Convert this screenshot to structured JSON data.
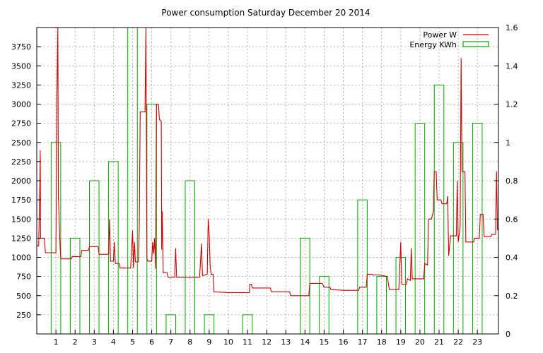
{
  "chart_data": {
    "type": "line",
    "title": "Power consumption Saturday December 20 2014",
    "xlabel": "",
    "ylabel": "",
    "y2label": "",
    "grid": true,
    "legend_position": "top-right",
    "x_ticks": [
      1,
      2,
      3,
      4,
      5,
      6,
      7,
      8,
      9,
      10,
      11,
      12,
      13,
      14,
      15,
      16,
      17,
      18,
      19,
      20,
      21,
      22,
      23
    ],
    "xlim": [
      0,
      24.1
    ],
    "y_ticks": [
      250,
      500,
      750,
      1000,
      1250,
      1500,
      1750,
      2000,
      2250,
      2500,
      2750,
      3000,
      3250,
      3500,
      3750
    ],
    "ylim": [
      0,
      4000
    ],
    "y2_ticks": [
      "0",
      "0.2",
      "0.4",
      "0.6",
      "0.8",
      "1",
      "1.2",
      "1.4",
      "1.6"
    ],
    "y2lim": [
      0,
      1.6
    ],
    "series": [
      {
        "name": "Power W",
        "axis": "left",
        "color": "#cc0000",
        "style": "line",
        "points": [
          [
            0,
            1150
          ],
          [
            0.1,
            1150
          ],
          [
            0.15,
            1800
          ],
          [
            0.18,
            2400
          ],
          [
            0.2,
            1250
          ],
          [
            0.4,
            1250
          ],
          [
            0.45,
            1060
          ],
          [
            0.9,
            1060
          ],
          [
            1.0,
            1060
          ],
          [
            1.05,
            3150
          ],
          [
            1.1,
            4000
          ],
          [
            1.13,
            1800
          ],
          [
            1.2,
            1250
          ],
          [
            1.25,
            980
          ],
          [
            1.8,
            980
          ],
          [
            1.85,
            1010
          ],
          [
            2.3,
            1010
          ],
          [
            2.35,
            1090
          ],
          [
            2.7,
            1090
          ],
          [
            2.75,
            1140
          ],
          [
            3.2,
            1140
          ],
          [
            3.25,
            1040
          ],
          [
            3.7,
            1040
          ],
          [
            3.75,
            1050
          ],
          [
            3.8,
            1500
          ],
          [
            3.85,
            950
          ],
          [
            4.0,
            950
          ],
          [
            4.05,
            1200
          ],
          [
            4.1,
            920
          ],
          [
            4.3,
            920
          ],
          [
            4.35,
            860
          ],
          [
            4.9,
            860
          ],
          [
            5.0,
            1350
          ],
          [
            5.05,
            860
          ],
          [
            5.1,
            1200
          ],
          [
            5.15,
            940
          ],
          [
            5.3,
            940
          ],
          [
            5.35,
            1400
          ],
          [
            5.4,
            2900
          ],
          [
            5.65,
            2900
          ],
          [
            5.7,
            4000
          ],
          [
            5.75,
            980
          ],
          [
            5.8,
            950
          ],
          [
            6.0,
            950
          ],
          [
            6.05,
            1200
          ],
          [
            6.1,
            1050
          ],
          [
            6.15,
            1250
          ],
          [
            6.2,
            850
          ],
          [
            6.25,
            3000
          ],
          [
            6.35,
            3000
          ],
          [
            6.4,
            2800
          ],
          [
            6.5,
            2780
          ],
          [
            6.52,
            1100
          ],
          [
            6.55,
            1600
          ],
          [
            6.6,
            800
          ],
          [
            6.8,
            800
          ],
          [
            6.85,
            740
          ],
          [
            7.2,
            740
          ],
          [
            7.25,
            1120
          ],
          [
            7.3,
            740
          ],
          [
            7.8,
            740
          ],
          [
            8.0,
            740
          ],
          [
            8.5,
            740
          ],
          [
            8.6,
            1180
          ],
          [
            8.65,
            760
          ],
          [
            8.9,
            780
          ],
          [
            8.95,
            1500
          ],
          [
            9.0,
            1300
          ],
          [
            9.05,
            900
          ],
          [
            9.1,
            780
          ],
          [
            9.2,
            780
          ],
          [
            9.25,
            550
          ],
          [
            10.0,
            540
          ],
          [
            10.9,
            540
          ],
          [
            11.1,
            540
          ],
          [
            11.12,
            650
          ],
          [
            11.2,
            650
          ],
          [
            11.25,
            600
          ],
          [
            11.8,
            600
          ],
          [
            12.2,
            600
          ],
          [
            12.25,
            550
          ],
          [
            13.2,
            550
          ],
          [
            13.25,
            500
          ],
          [
            13.9,
            500
          ],
          [
            14.2,
            500
          ],
          [
            14.25,
            660
          ],
          [
            14.9,
            660
          ],
          [
            15.0,
            610
          ],
          [
            15.3,
            610
          ],
          [
            15.35,
            580
          ],
          [
            16.0,
            570
          ],
          [
            16.8,
            570
          ],
          [
            16.85,
            610
          ],
          [
            17.2,
            610
          ],
          [
            17.25,
            780
          ],
          [
            17.5,
            780
          ],
          [
            17.55,
            770
          ],
          [
            17.9,
            770
          ],
          [
            18.3,
            750
          ],
          [
            18.4,
            580
          ],
          [
            18.9,
            580
          ],
          [
            19.0,
            1200
          ],
          [
            19.05,
            650
          ],
          [
            19.3,
            650
          ],
          [
            19.35,
            720
          ],
          [
            19.5,
            700
          ],
          [
            19.55,
            1120
          ],
          [
            19.6,
            720
          ],
          [
            20.0,
            720
          ],
          [
            20.2,
            720
          ],
          [
            20.25,
            920
          ],
          [
            20.4,
            900
          ],
          [
            20.45,
            1500
          ],
          [
            20.6,
            1500
          ],
          [
            20.7,
            1600
          ],
          [
            20.75,
            2120
          ],
          [
            20.85,
            2120
          ],
          [
            20.9,
            1750
          ],
          [
            21.1,
            1750
          ],
          [
            21.15,
            1700
          ],
          [
            21.4,
            1700
          ],
          [
            21.45,
            1800
          ],
          [
            21.5,
            1020
          ],
          [
            21.6,
            1280
          ],
          [
            21.9,
            1280
          ],
          [
            21.95,
            2000
          ],
          [
            22.0,
            1200
          ],
          [
            22.1,
            1400
          ],
          [
            22.15,
            3600
          ],
          [
            22.2,
            2120
          ],
          [
            22.35,
            2120
          ],
          [
            22.4,
            1200
          ],
          [
            22.8,
            1200
          ],
          [
            22.85,
            1250
          ],
          [
            23.1,
            1250
          ],
          [
            23.15,
            1560
          ],
          [
            23.3,
            1560
          ],
          [
            23.35,
            1270
          ],
          [
            23.7,
            1270
          ],
          [
            23.75,
            1300
          ],
          [
            23.95,
            1300
          ],
          [
            24.0,
            2120
          ],
          [
            24.05,
            1360
          ],
          [
            24.1,
            1360
          ]
        ]
      },
      {
        "name": "Energy KWh",
        "axis": "right",
        "color": "#00aa00",
        "style": "boxes",
        "bars": [
          [
            1,
            1.0
          ],
          [
            2,
            0.5
          ],
          [
            3,
            0.8
          ],
          [
            4,
            0.9
          ],
          [
            5,
            1.7
          ],
          [
            6,
            1.2
          ],
          [
            7,
            0.1
          ],
          [
            8,
            0.8
          ],
          [
            9,
            0.1
          ],
          [
            10,
            0
          ],
          [
            11,
            0.1
          ],
          [
            12,
            0
          ],
          [
            13,
            0
          ],
          [
            14,
            0.5
          ],
          [
            15,
            0.3
          ],
          [
            16,
            0
          ],
          [
            17,
            0.7
          ],
          [
            18,
            0.3
          ],
          [
            19,
            0.4
          ],
          [
            20,
            1.1
          ],
          [
            21,
            1.3
          ],
          [
            22,
            1.0
          ],
          [
            23,
            1.1
          ]
        ],
        "bar_width": 0.5
      }
    ]
  }
}
